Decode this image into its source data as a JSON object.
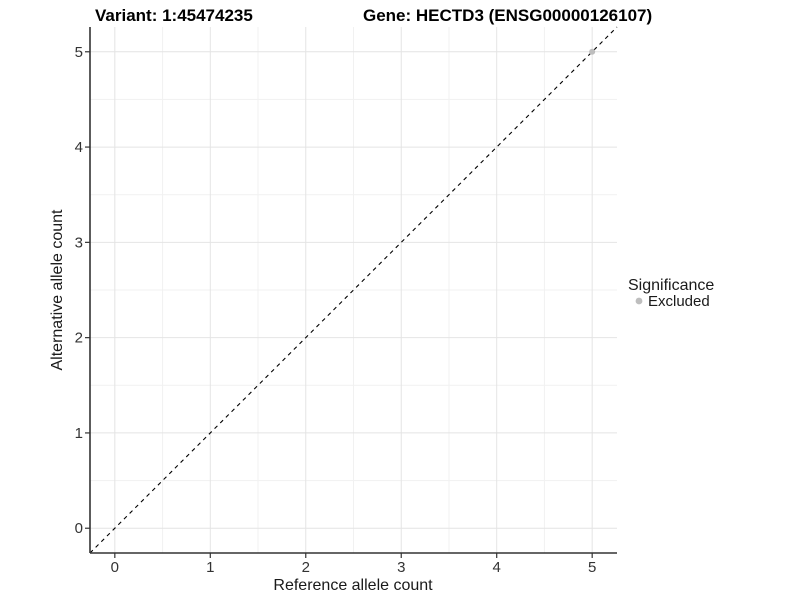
{
  "chart_data": {
    "type": "scatter",
    "title_left": "Variant: 1:45474235",
    "title_right": "Gene: HECTD3 (ENSG00000126107)",
    "xlabel": "Reference allele count",
    "ylabel": "Alternative allele count",
    "xlim": [
      -0.26,
      5.26
    ],
    "ylim": [
      -0.26,
      5.26
    ],
    "x_ticks": [
      0,
      1,
      2,
      3,
      4,
      5
    ],
    "y_ticks": [
      0,
      1,
      2,
      3,
      4,
      5
    ],
    "minor_ticks": [
      0.5,
      1.5,
      2.5,
      3.5,
      4.5
    ],
    "grid": "major+minor",
    "reference_line": {
      "type": "abline",
      "slope": 1,
      "intercept": 0,
      "style": "dashed",
      "color": "#000000"
    },
    "series": [
      {
        "name": "Excluded",
        "color": "#bebebe",
        "points": [
          {
            "x": 5,
            "y": 5
          }
        ]
      }
    ],
    "legend": {
      "title": "Significance",
      "position": "right",
      "entries": [
        {
          "label": "Excluded",
          "color": "#bebebe"
        }
      ]
    }
  },
  "colors": {
    "background": "#ffffff",
    "grid_major": "#e4e4e4",
    "grid_minor": "#f1f1f1",
    "axis_line": "#333333",
    "tick_mark": "#333333",
    "point_excluded": "#bebebe"
  }
}
